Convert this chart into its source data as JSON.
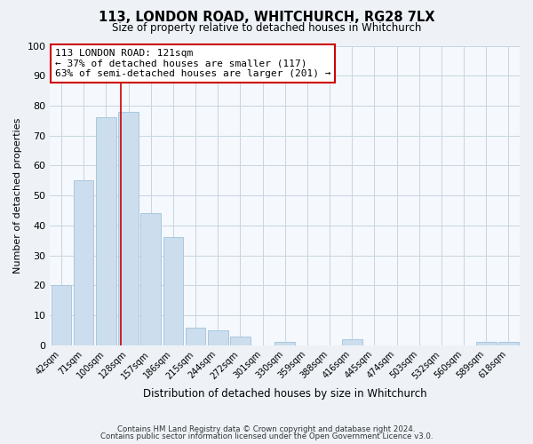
{
  "title": "113, LONDON ROAD, WHITCHURCH, RG28 7LX",
  "subtitle": "Size of property relative to detached houses in Whitchurch",
  "xlabel": "Distribution of detached houses by size in Whitchurch",
  "ylabel": "Number of detached properties",
  "bar_labels": [
    "42sqm",
    "71sqm",
    "100sqm",
    "128sqm",
    "157sqm",
    "186sqm",
    "215sqm",
    "244sqm",
    "272sqm",
    "301sqm",
    "330sqm",
    "359sqm",
    "388sqm",
    "416sqm",
    "445sqm",
    "474sqm",
    "503sqm",
    "532sqm",
    "560sqm",
    "589sqm",
    "618sqm"
  ],
  "bar_values": [
    20,
    55,
    76,
    78,
    44,
    36,
    6,
    5,
    3,
    0,
    1,
    0,
    0,
    2,
    0,
    0,
    0,
    0,
    0,
    1,
    1
  ],
  "bar_color": "#ccdded",
  "bar_edge_color": "#a8c8e0",
  "vline_color": "#cc0000",
  "annotation_title": "113 LONDON ROAD: 121sqm",
  "annotation_line1": "← 37% of detached houses are smaller (117)",
  "annotation_line2": "63% of semi-detached houses are larger (201) →",
  "annotation_box_color": "#ffffff",
  "annotation_box_edge": "#cc0000",
  "ylim": [
    0,
    100
  ],
  "yticks": [
    0,
    10,
    20,
    30,
    40,
    50,
    60,
    70,
    80,
    90,
    100
  ],
  "footnote1": "Contains HM Land Registry data © Crown copyright and database right 2024.",
  "footnote2": "Contains public sector information licensed under the Open Government Licence v3.0.",
  "bg_color": "#eef2f7",
  "plot_bg_color": "#f5f8fc",
  "grid_color": "#c8d4e0"
}
